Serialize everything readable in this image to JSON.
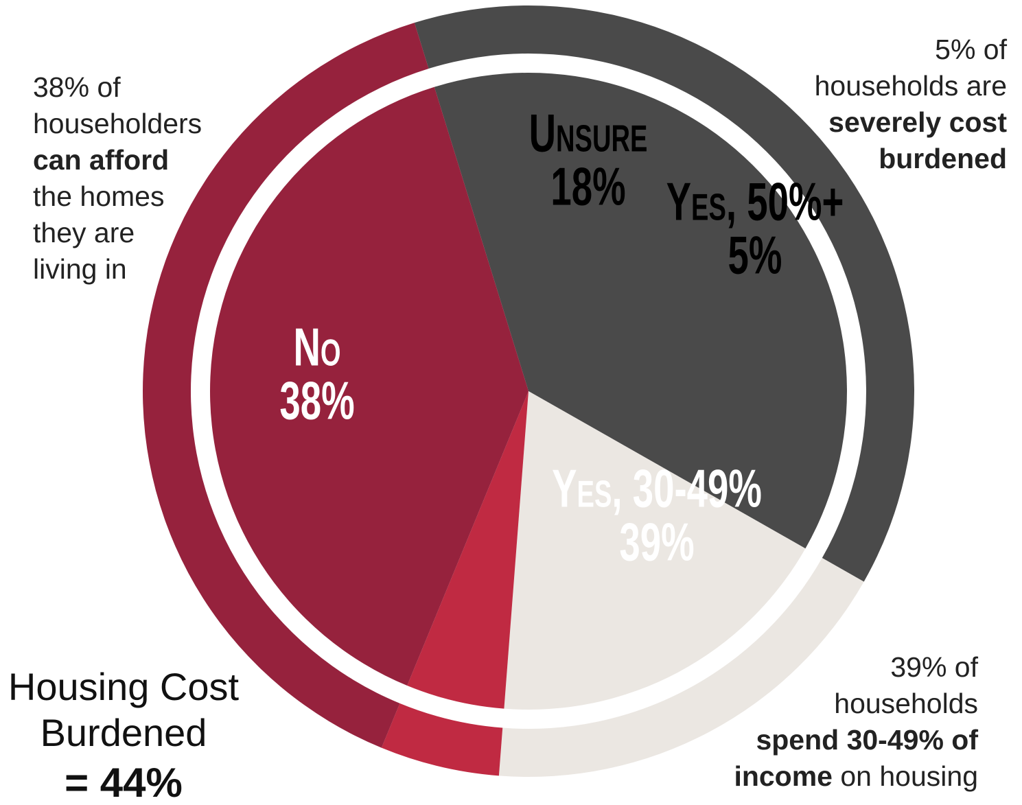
{
  "chart_data": {
    "type": "pie",
    "categories": [
      "No",
      "Unsure",
      "Yes, 50%+",
      "Yes, 30-49%"
    ],
    "values": [
      38,
      18,
      5,
      39
    ],
    "value_labels": [
      "38%",
      "18%",
      "5%",
      "39%"
    ],
    "colors": [
      "#4a4a4a",
      "#ebe7e2",
      "#c02a42",
      "#96223d"
    ],
    "annotations": [
      [
        [
          {
            "text": "38% of",
            "bold": false
          }
        ],
        [
          {
            "text": "householders",
            "bold": false
          }
        ],
        [
          {
            "text": "can afford",
            "bold": true
          }
        ],
        [
          {
            "text": "the homes",
            "bold": false
          }
        ],
        [
          {
            "text": "they are",
            "bold": false
          }
        ],
        [
          {
            "text": "living in",
            "bold": false
          }
        ]
      ],
      [
        [
          {
            "text": "5% of",
            "bold": false
          }
        ],
        [
          {
            "text": "households are",
            "bold": false
          }
        ],
        [
          {
            "text": "severely cost",
            "bold": true
          }
        ],
        [
          {
            "text": "burdened",
            "bold": true
          }
        ]
      ],
      [
        [
          {
            "text": "39% of",
            "bold": false
          }
        ],
        [
          {
            "text": "households",
            "bold": false
          }
        ],
        [
          {
            "text": "spend 30-49% of",
            "bold": true
          }
        ],
        [
          {
            "text": "income",
            "bold": true
          },
          {
            "text": " on housing",
            "bold": false
          }
        ]
      ]
    ],
    "summary": [
      "Housing Cost",
      "Burdened",
      "= 44%"
    ]
  }
}
